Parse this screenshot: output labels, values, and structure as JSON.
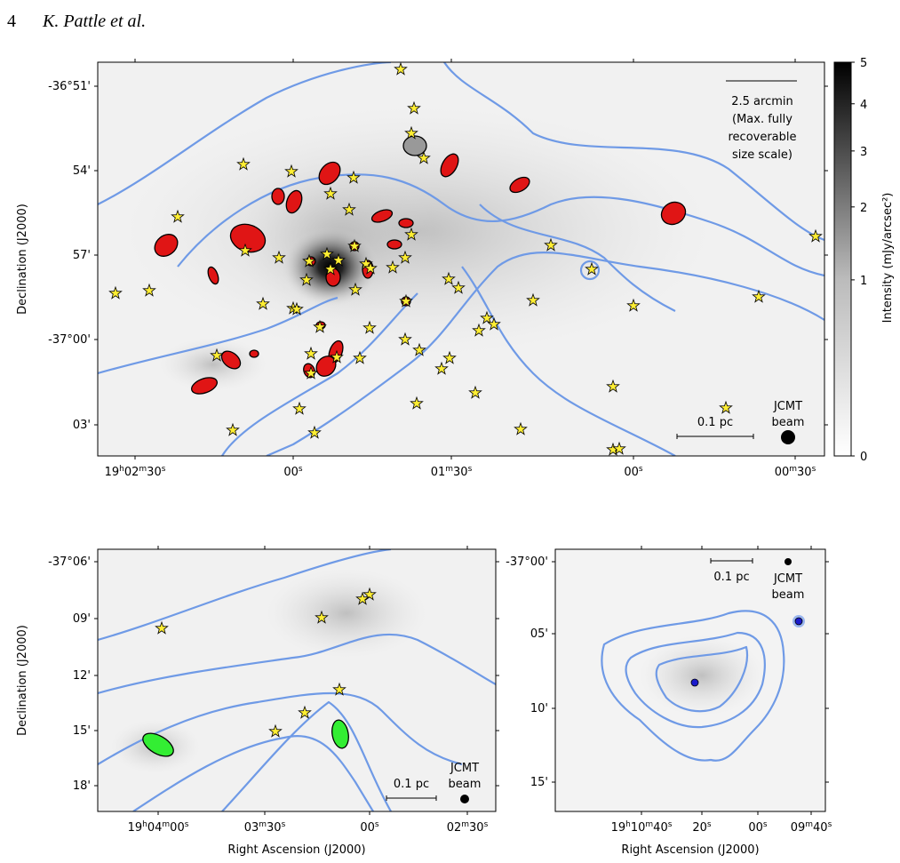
{
  "header": {
    "page_number": "4",
    "authors": "K. Pattle et al."
  },
  "panels": [
    {
      "dec_ticks": [
        "-36°51'",
        "54'",
        "57'",
        "-37°00'",
        "03'"
      ],
      "ra_ticks": [
        "19h02m30s",
        "00s",
        "01m30s",
        "00s",
        "00m30s"
      ],
      "ylabel": "Declination (J2000)",
      "angular_scale": [
        "2.5 arcmin",
        "(Max. fully",
        "recoverable",
        "size scale)"
      ],
      "scale_bar": "0.1 pc",
      "beam_label": [
        "JCMT",
        "beam"
      ]
    },
    {
      "dec_ticks": [
        "-37°06'",
        "09'",
        "12'",
        "15'",
        "18'"
      ],
      "ra_ticks": [
        "19h04m00s",
        "03m30s",
        "00s",
        "02m30s"
      ],
      "xlabel": "Right Ascension (J2000)",
      "ylabel": "Declination (J2000)",
      "scale_bar": "0.1 pc",
      "beam_label": [
        "JCMT",
        "beam"
      ]
    },
    {
      "dec_ticks": [
        "-37°00'",
        "05'",
        "10'",
        "15'"
      ],
      "ra_ticks": [
        "19h10m40s",
        "20s",
        "00s",
        "09m40s"
      ],
      "xlabel": "Right Ascension (J2000)",
      "scale_bar": "0.1 pc",
      "beam_label": [
        "JCMT",
        "beam"
      ]
    }
  ],
  "colorbar": {
    "label": "Intensity (mJy/arcsec²)",
    "ticks": [
      0,
      1,
      2,
      3,
      4,
      5
    ],
    "clim": [
      0,
      5
    ],
    "scale": "sqrt"
  }
}
